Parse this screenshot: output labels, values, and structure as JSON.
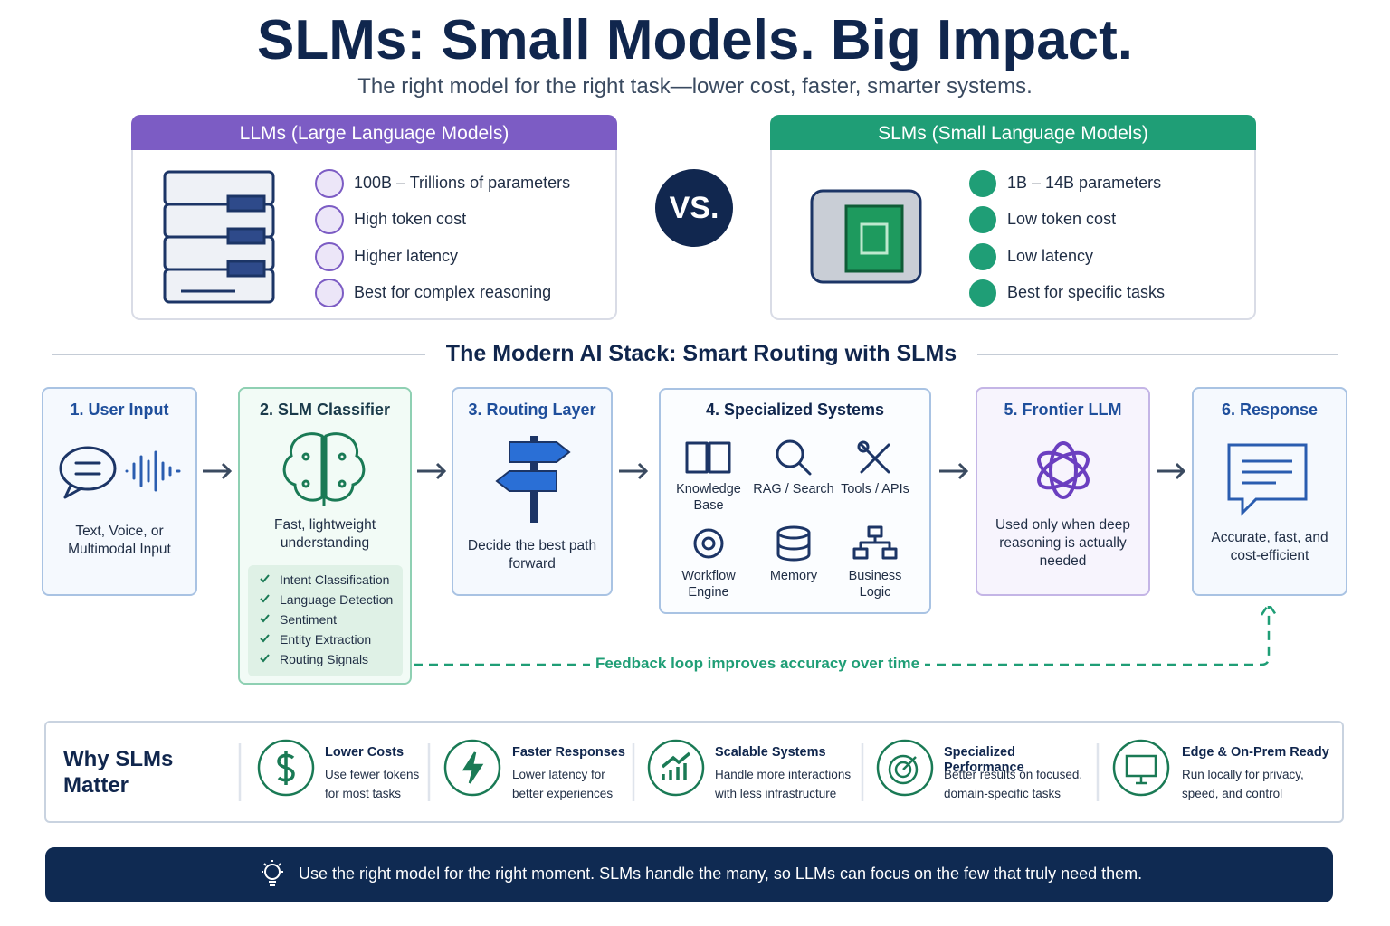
{
  "header": {
    "title": "SLMs: Small Models. Big Impact.",
    "subtitle": "The right model for the right task—lower cost, faster, smarter systems."
  },
  "comparison": {
    "llm": {
      "title": "LLMs (Large Language Models)",
      "items": [
        "100B – Trillions of parameters",
        "High token cost",
        "Higher latency",
        "Best for complex reasoning"
      ]
    },
    "vs": "VS.",
    "slm": {
      "title": "SLMs (Small Language Models)",
      "items": [
        "1B – 14B parameters",
        "Low token cost",
        "Low latency",
        "Best for specific tasks"
      ]
    }
  },
  "stack": {
    "title": "The Modern AI Stack: Smart Routing with SLMs",
    "steps": [
      {
        "title": "1. User Input",
        "description": "Text, Voice, or Multimodal Input"
      },
      {
        "title": "2. SLM Classifier",
        "description": "Fast, lightweight understanding",
        "checklist": [
          "Intent Classification",
          "Language Detection",
          "Sentiment",
          "Entity Extraction",
          "Routing Signals"
        ]
      },
      {
        "title": "3. Routing Layer",
        "description": "Decide the best path forward"
      },
      {
        "title": "4. Specialized Systems",
        "systems": [
          "Knowledge Base",
          "RAG / Search",
          "Tools / APIs",
          "Workflow Engine",
          "Memory",
          "Business Logic"
        ]
      },
      {
        "title": "5. Frontier LLM",
        "description": "Used only when deep reasoning is actually needed"
      },
      {
        "title": "6. Response",
        "description": "Accurate, fast, and cost-efficient"
      }
    ],
    "feedback": "Feedback loop improves accuracy over time"
  },
  "why": {
    "title": "Why SLMs Matter",
    "items": [
      {
        "title": "Lower Costs",
        "description": "Use fewer tokens for most tasks"
      },
      {
        "title": "Faster Responses",
        "description": "Lower latency for better experiences"
      },
      {
        "title": "Scalable Systems",
        "description": "Handle more interactions with less infrastructure"
      },
      {
        "title": "Specialized Performance",
        "description": "Better results on focused, domain-specific tasks"
      },
      {
        "title": "Edge & On-Prem Ready",
        "description": "Run locally for privacy, speed, and control"
      }
    ]
  },
  "footer": "Use the right model for the right moment. SLMs handle the many, so LLMs can focus on the few that truly need them."
}
